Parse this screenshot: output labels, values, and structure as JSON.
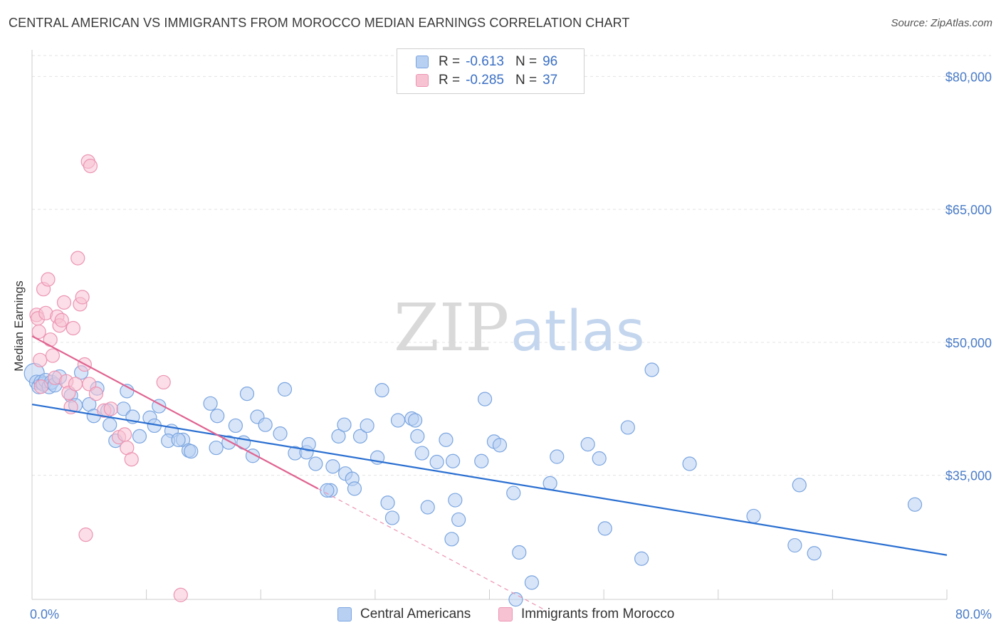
{
  "header": {
    "title": "CENTRAL AMERICAN VS IMMIGRANTS FROM MOROCCO MEDIAN EARNINGS CORRELATION CHART",
    "source": "Source: ZipAtlas.com"
  },
  "watermark": {
    "zip": "ZIP",
    "atlas": "atlas"
  },
  "legend_top": {
    "rows": [
      {
        "r_label": "R =",
        "r_value": "-0.613",
        "n_label": "N =",
        "n_value": "96"
      },
      {
        "r_label": "R =",
        "r_value": "-0.285",
        "n_label": "N =",
        "n_value": "37"
      }
    ]
  },
  "colors": {
    "blue_fill": "#b8d0f2",
    "blue_stroke": "#7aa5e0",
    "blue_line": "#2a6fd1",
    "pink_fill": "#f7c3d3",
    "pink_stroke": "#ec94b2",
    "pink_line": "#e06390",
    "tick_text": "#4a7cc7",
    "grid": "#e3e3e3"
  },
  "chart_data": {
    "type": "scatter",
    "title": "CENTRAL AMERICAN VS IMMIGRANTS FROM MOROCCO MEDIAN EARNINGS CORRELATION CHART",
    "ylabel": "Median Earnings",
    "xlabel": "",
    "xlim": [
      0,
      80
    ],
    "ylim": [
      21000,
      83000
    ],
    "x_tick_labels": [
      {
        "value": 0,
        "label": "0.0%"
      },
      {
        "value": 80,
        "label": "80.0%"
      }
    ],
    "y_tick_labels": [
      {
        "value": 35000,
        "label": "$35,000"
      },
      {
        "value": 50000,
        "label": "$50,000"
      },
      {
        "value": 65000,
        "label": "$65,000"
      },
      {
        "value": 80000,
        "label": "$80,000"
      }
    ],
    "grid": true,
    "legend_position": "bottom",
    "series": [
      {
        "name": "Central Americans",
        "R": -0.613,
        "N": 96,
        "trend": {
          "x": [
            0,
            80
          ],
          "y": [
            43000,
            26000
          ],
          "dashed_extension": false
        },
        "points": [
          [
            0.2,
            46500
          ],
          [
            0.4,
            45500
          ],
          [
            0.6,
            45000
          ],
          [
            0.8,
            45500
          ],
          [
            1.0,
            45300
          ],
          [
            1.2,
            45700
          ],
          [
            1.5,
            45000
          ],
          [
            1.7,
            45500
          ],
          [
            2.0,
            45200
          ],
          [
            2.4,
            46100
          ],
          [
            4.3,
            46600
          ],
          [
            3.4,
            44000
          ],
          [
            5.7,
            44800
          ],
          [
            8.3,
            44500
          ],
          [
            5.0,
            43000
          ],
          [
            3.8,
            42900
          ],
          [
            6.6,
            42300
          ],
          [
            8.0,
            42500
          ],
          [
            11.1,
            42800
          ],
          [
            15.6,
            43100
          ],
          [
            5.4,
            41700
          ],
          [
            8.8,
            41600
          ],
          [
            10.3,
            41500
          ],
          [
            6.8,
            40700
          ],
          [
            10.7,
            40600
          ],
          [
            12.2,
            40000
          ],
          [
            13.2,
            39000
          ],
          [
            16.2,
            41700
          ],
          [
            17.8,
            40600
          ],
          [
            19.7,
            41600
          ],
          [
            20.4,
            40700
          ],
          [
            22.1,
            44700
          ],
          [
            18.8,
            44200
          ],
          [
            7.3,
            38900
          ],
          [
            9.4,
            39400
          ],
          [
            11.9,
            38900
          ],
          [
            12.8,
            39000
          ],
          [
            13.7,
            37800
          ],
          [
            13.9,
            37700
          ],
          [
            16.1,
            38100
          ],
          [
            17.2,
            38700
          ],
          [
            18.5,
            38700
          ],
          [
            19.3,
            37200
          ],
          [
            21.7,
            39700
          ],
          [
            23.0,
            37500
          ],
          [
            24.0,
            37600
          ],
          [
            24.2,
            38500
          ],
          [
            24.8,
            36300
          ],
          [
            26.3,
            36000
          ],
          [
            27.4,
            35200
          ],
          [
            28.0,
            34600
          ],
          [
            28.2,
            33500
          ],
          [
            26.1,
            33300
          ],
          [
            25.8,
            33300
          ],
          [
            26.8,
            39400
          ],
          [
            27.3,
            40700
          ],
          [
            28.7,
            39400
          ],
          [
            29.3,
            40600
          ],
          [
            30.2,
            37000
          ],
          [
            30.6,
            44600
          ],
          [
            31.1,
            31900
          ],
          [
            32.0,
            41200
          ],
          [
            33.2,
            41400
          ],
          [
            33.5,
            41200
          ],
          [
            33.7,
            39400
          ],
          [
            34.1,
            37500
          ],
          [
            35.4,
            36500
          ],
          [
            36.2,
            39000
          ],
          [
            36.8,
            36600
          ],
          [
            37.0,
            32200
          ],
          [
            37.3,
            30000
          ],
          [
            36.7,
            27800
          ],
          [
            34.6,
            31400
          ],
          [
            31.5,
            30200
          ],
          [
            39.3,
            36600
          ],
          [
            39.6,
            43600
          ],
          [
            40.4,
            38800
          ],
          [
            40.9,
            38400
          ],
          [
            42.1,
            33000
          ],
          [
            42.6,
            26300
          ],
          [
            43.7,
            22900
          ],
          [
            42.3,
            21000
          ],
          [
            45.3,
            34100
          ],
          [
            45.9,
            37100
          ],
          [
            48.6,
            38500
          ],
          [
            49.6,
            36900
          ],
          [
            50.1,
            29000
          ],
          [
            52.1,
            40400
          ],
          [
            53.3,
            25600
          ],
          [
            54.2,
            46900
          ],
          [
            57.5,
            36300
          ],
          [
            63.1,
            30400
          ],
          [
            66.7,
            27100
          ],
          [
            67.1,
            33900
          ],
          [
            68.4,
            26200
          ],
          [
            77.2,
            31700
          ]
        ]
      },
      {
        "name": "Immigrants from Morocco",
        "R": -0.285,
        "N": 37,
        "trend": {
          "x": [
            0,
            25
          ],
          "y": [
            50700,
            33500
          ],
          "dashed_extension": true,
          "dash_to": {
            "x": 45,
            "y": 19700
          }
        },
        "points": [
          [
            0.4,
            53100
          ],
          [
            0.5,
            52700
          ],
          [
            0.6,
            51200
          ],
          [
            0.7,
            48000
          ],
          [
            0.8,
            45000
          ],
          [
            1.0,
            56000
          ],
          [
            1.2,
            53300
          ],
          [
            1.4,
            57100
          ],
          [
            1.6,
            50300
          ],
          [
            1.8,
            48500
          ],
          [
            2.0,
            46000
          ],
          [
            2.2,
            52900
          ],
          [
            2.4,
            51900
          ],
          [
            2.6,
            52500
          ],
          [
            2.8,
            54500
          ],
          [
            3.0,
            45600
          ],
          [
            3.2,
            44300
          ],
          [
            3.4,
            42700
          ],
          [
            3.6,
            51600
          ],
          [
            3.8,
            45300
          ],
          [
            4.0,
            59500
          ],
          [
            4.2,
            54300
          ],
          [
            4.4,
            55100
          ],
          [
            4.6,
            47500
          ],
          [
            5.0,
            45300
          ],
          [
            5.6,
            44200
          ],
          [
            6.3,
            42300
          ],
          [
            6.9,
            42500
          ],
          [
            7.6,
            39300
          ],
          [
            8.1,
            39600
          ],
          [
            8.3,
            38100
          ],
          [
            8.7,
            36800
          ],
          [
            4.7,
            28300
          ],
          [
            4.9,
            70400
          ],
          [
            5.1,
            69900
          ],
          [
            11.5,
            45500
          ],
          [
            13.0,
            21500
          ]
        ]
      }
    ]
  },
  "bottom_legend": {
    "items": [
      "Central Americans",
      "Immigrants from Morocco"
    ]
  }
}
